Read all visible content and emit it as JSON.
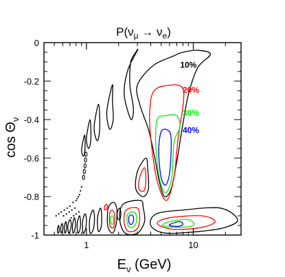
{
  "chart_data": {
    "type": "contour",
    "title": "P(νμ → νe)",
    "title_parts": {
      "prefix": "P(ν",
      "sub1": "μ",
      "arrow": " → ν",
      "sub2": "e",
      "suffix": ")"
    },
    "xlabel": {
      "main": "E",
      "sub": "ν",
      "unit": " (GeV)"
    },
    "ylabel": {
      "main": "cos Θ",
      "sub": "ν"
    },
    "x_scale": "log",
    "xlim": [
      0.4,
      28
    ],
    "ylim": [
      -1,
      0
    ],
    "x_ticks": [
      {
        "value": 1,
        "label": "1"
      },
      {
        "value": 10,
        "label": "10"
      }
    ],
    "y_ticks": [
      {
        "value": 0,
        "label": "0"
      },
      {
        "value": -0.2,
        "label": "-0.2"
      },
      {
        "value": -0.4,
        "label": "-0.4"
      },
      {
        "value": -0.6,
        "label": "-0.6"
      },
      {
        "value": -0.8,
        "label": "-0.8"
      },
      {
        "value": -1,
        "label": "-1"
      }
    ],
    "grid": false,
    "contours": [
      {
        "level": "10%",
        "color": "#000000",
        "label_pos": {
          "E": 9.0,
          "cos": -0.13
        }
      },
      {
        "level": "20%",
        "color": "#ff0000",
        "label_pos": {
          "E": 9.5,
          "cos": -0.26
        }
      },
      {
        "level": "30%",
        "color": "#00ee00",
        "label_pos": {
          "E": 9.5,
          "cos": -0.38
        }
      },
      {
        "level": "40%",
        "color": "#0000ff",
        "label_pos": {
          "E": 9.5,
          "cos": -0.47
        }
      }
    ],
    "main_lobes": [
      {
        "level": "10%",
        "points": [
          [
            6.5,
            -0.07
          ],
          [
            4.2,
            -0.12
          ],
          [
            3.0,
            -0.22
          ],
          [
            3.15,
            -0.32
          ],
          [
            3.8,
            -0.45
          ],
          [
            4.3,
            -0.58
          ],
          [
            4.8,
            -0.72
          ],
          [
            5.4,
            -0.8
          ],
          [
            6.2,
            -0.76
          ],
          [
            7.0,
            -0.62
          ],
          [
            7.9,
            -0.44
          ],
          [
            9.0,
            -0.27
          ],
          [
            11.0,
            -0.13
          ],
          [
            14.5,
            -0.06
          ],
          [
            11.0,
            -0.04
          ],
          [
            8.0,
            -0.05
          ]
        ]
      },
      {
        "level": "20%",
        "points": [
          [
            6.5,
            -0.22
          ],
          [
            4.3,
            -0.25
          ],
          [
            3.9,
            -0.38
          ],
          [
            4.1,
            -0.55
          ],
          [
            4.6,
            -0.72
          ],
          [
            5.6,
            -0.82
          ],
          [
            6.6,
            -0.7
          ],
          [
            7.2,
            -0.5
          ],
          [
            8.0,
            -0.33
          ],
          [
            8.0,
            -0.24
          ]
        ]
      },
      {
        "level": "30%",
        "points": [
          [
            5.4,
            -0.38
          ],
          [
            4.6,
            -0.4
          ],
          [
            4.45,
            -0.52
          ],
          [
            4.8,
            -0.7
          ],
          [
            5.5,
            -0.78
          ],
          [
            6.3,
            -0.7
          ],
          [
            6.6,
            -0.52
          ],
          [
            7.5,
            -0.44
          ],
          [
            7.0,
            -0.38
          ]
        ]
      },
      {
        "level": "40%",
        "points": [
          [
            5.3,
            -0.45
          ],
          [
            4.9,
            -0.48
          ],
          [
            4.75,
            -0.58
          ],
          [
            5.0,
            -0.7
          ],
          [
            5.5,
            -0.74
          ],
          [
            6.0,
            -0.68
          ],
          [
            6.2,
            -0.55
          ],
          [
            6.1,
            -0.47
          ]
        ]
      }
    ],
    "side_bands": [
      {
        "level": "10%",
        "points": [
          [
            3.0,
            -0.04
          ],
          [
            2.45,
            -0.14
          ],
          [
            2.25,
            -0.26
          ],
          [
            2.45,
            -0.36
          ],
          [
            2.65,
            -0.4
          ],
          [
            2.75,
            -0.34
          ],
          [
            2.55,
            -0.22
          ],
          [
            2.6,
            -0.1
          ],
          [
            2.9,
            -0.05
          ]
        ]
      },
      {
        "level": "10%",
        "points": [
          [
            1.75,
            -0.22
          ],
          [
            1.55,
            -0.36
          ],
          [
            1.65,
            -0.45
          ],
          [
            1.78,
            -0.4
          ],
          [
            1.75,
            -0.3
          ]
        ]
      },
      {
        "level": "10%",
        "points": [
          [
            1.3,
            -0.32
          ],
          [
            1.18,
            -0.44
          ],
          [
            1.26,
            -0.51
          ],
          [
            1.33,
            -0.45
          ]
        ]
      },
      {
        "level": "10%",
        "points": [
          [
            1.08,
            -0.4
          ],
          [
            1.0,
            -0.5
          ],
          [
            1.05,
            -0.55
          ],
          [
            1.1,
            -0.5
          ]
        ]
      },
      {
        "level": "10%",
        "points": [
          [
            0.96,
            -0.48
          ],
          [
            0.9,
            -0.56
          ],
          [
            0.94,
            -0.59
          ],
          [
            0.97,
            -0.55
          ]
        ]
      },
      {
        "level": "10%",
        "points": [
          [
            3.6,
            -0.6
          ],
          [
            3.0,
            -0.67
          ],
          [
            2.9,
            -0.76
          ],
          [
            3.4,
            -0.8
          ],
          [
            3.8,
            -0.76
          ],
          [
            3.75,
            -0.66
          ]
        ]
      },
      {
        "level": "20%",
        "points": [
          [
            3.5,
            -0.65
          ],
          [
            3.15,
            -0.7
          ],
          [
            3.1,
            -0.76
          ],
          [
            3.45,
            -0.77
          ],
          [
            3.6,
            -0.72
          ]
        ]
      },
      {
        "level": "10%",
        "points": [
          [
            18.0,
            -0.86
          ],
          [
            8.0,
            -0.87
          ],
          [
            4.5,
            -0.89
          ],
          [
            4.0,
            -0.95
          ],
          [
            5.5,
            -0.99
          ],
          [
            12.0,
            -0.98
          ],
          [
            20.0,
            -0.96
          ],
          [
            26.0,
            -0.92
          ]
        ]
      },
      {
        "level": "20%",
        "points": [
          [
            12.0,
            -0.9
          ],
          [
            6.0,
            -0.91
          ],
          [
            4.6,
            -0.94
          ],
          [
            6.5,
            -0.97
          ],
          [
            12.0,
            -0.96
          ],
          [
            16.0,
            -0.93
          ]
        ]
      },
      {
        "level": "30%",
        "points": [
          [
            9.0,
            -0.92
          ],
          [
            6.0,
            -0.93
          ],
          [
            5.2,
            -0.95
          ],
          [
            7.0,
            -0.96
          ],
          [
            10.0,
            -0.95
          ]
        ]
      },
      {
        "level": "40%",
        "points": [
          [
            7.5,
            -0.93
          ],
          [
            6.3,
            -0.94
          ],
          [
            6.0,
            -0.95
          ],
          [
            7.2,
            -0.955
          ],
          [
            8.0,
            -0.945
          ]
        ]
      },
      {
        "level": "10%",
        "points": [
          [
            3.2,
            -0.82
          ],
          [
            2.2,
            -0.84
          ],
          [
            2.05,
            -0.92
          ],
          [
            2.3,
            -0.99
          ],
          [
            3.0,
            -0.99
          ],
          [
            3.5,
            -0.93
          ],
          [
            3.4,
            -0.86
          ]
        ]
      },
      {
        "level": "20%",
        "points": [
          [
            3.0,
            -0.86
          ],
          [
            2.35,
            -0.87
          ],
          [
            2.25,
            -0.93
          ],
          [
            2.45,
            -0.98
          ],
          [
            2.95,
            -0.97
          ],
          [
            3.15,
            -0.92
          ]
        ]
      },
      {
        "level": "30%",
        "points": [
          [
            2.8,
            -0.88
          ],
          [
            2.45,
            -0.89
          ],
          [
            2.4,
            -0.93
          ],
          [
            2.55,
            -0.96
          ],
          [
            2.85,
            -0.95
          ],
          [
            2.95,
            -0.91
          ]
        ]
      },
      {
        "level": "40%",
        "points": [
          [
            2.62,
            -0.895
          ],
          [
            2.5,
            -0.905
          ],
          [
            2.5,
            -0.935
          ],
          [
            2.62,
            -0.945
          ],
          [
            2.75,
            -0.93
          ],
          [
            2.75,
            -0.905
          ]
        ]
      },
      {
        "level": "10%",
        "points": [
          [
            1.78,
            -0.83
          ],
          [
            1.6,
            -0.86
          ],
          [
            1.58,
            -0.95
          ],
          [
            1.75,
            -0.99
          ],
          [
            1.9,
            -0.94
          ],
          [
            1.92,
            -0.86
          ]
        ]
      },
      {
        "level": "20%",
        "points": [
          [
            1.75,
            -0.87
          ],
          [
            1.65,
            -0.89
          ],
          [
            1.66,
            -0.95
          ],
          [
            1.8,
            -0.96
          ],
          [
            1.84,
            -0.9
          ]
        ]
      },
      {
        "level": "30%",
        "points": [
          [
            1.74,
            -0.9
          ],
          [
            1.69,
            -0.91
          ],
          [
            1.7,
            -0.94
          ],
          [
            1.78,
            -0.94
          ],
          [
            1.79,
            -0.91
          ]
        ]
      },
      {
        "level": "10%",
        "points": [
          [
            2.05,
            -0.86
          ],
          [
            1.95,
            -0.88
          ],
          [
            1.95,
            -0.91
          ],
          [
            2.05,
            -0.92
          ],
          [
            2.1,
            -0.89
          ]
        ]
      },
      {
        "level": "20%",
        "points": [
          [
            1.55,
            -0.84
          ],
          [
            1.48,
            -0.85
          ],
          [
            1.49,
            -0.87
          ],
          [
            1.56,
            -0.86
          ]
        ]
      }
    ],
    "floor_bands": [
      {
        "level": "10%",
        "points": [
          [
            1.15,
            -0.87
          ],
          [
            1.07,
            -0.92
          ],
          [
            1.08,
            -0.99
          ],
          [
            1.16,
            -0.97
          ],
          [
            1.19,
            -0.91
          ]
        ]
      },
      {
        "level": "10%",
        "points": [
          [
            1.35,
            -0.86
          ],
          [
            1.27,
            -0.91
          ],
          [
            1.29,
            -0.98
          ],
          [
            1.37,
            -0.96
          ],
          [
            1.39,
            -0.9
          ]
        ]
      },
      {
        "level": "10%",
        "points": [
          [
            0.97,
            -0.89
          ],
          [
            0.92,
            -0.93
          ],
          [
            0.93,
            -0.99
          ],
          [
            0.98,
            -0.97
          ],
          [
            1.0,
            -0.92
          ]
        ]
      },
      {
        "level": "10%",
        "points": [
          [
            0.86,
            -0.9
          ],
          [
            0.82,
            -0.94
          ],
          [
            0.83,
            -0.99
          ],
          [
            0.87,
            -0.97
          ],
          [
            0.88,
            -0.93
          ]
        ]
      },
      {
        "level": "10%",
        "points": [
          [
            0.77,
            -0.91
          ],
          [
            0.74,
            -0.95
          ],
          [
            0.75,
            -0.99
          ],
          [
            0.78,
            -0.97
          ],
          [
            0.79,
            -0.94
          ]
        ]
      },
      {
        "level": "10%",
        "points": [
          [
            0.7,
            -0.92
          ],
          [
            0.67,
            -0.95
          ],
          [
            0.68,
            -0.99
          ],
          [
            0.71,
            -0.97
          ],
          [
            0.72,
            -0.94
          ]
        ]
      },
      {
        "level": "10%",
        "points": [
          [
            0.64,
            -0.93
          ],
          [
            0.62,
            -0.96
          ],
          [
            0.63,
            -0.99
          ],
          [
            0.65,
            -0.97
          ],
          [
            0.65,
            -0.95
          ]
        ]
      },
      {
        "level": "10%",
        "points": [
          [
            0.59,
            -0.94
          ],
          [
            0.575,
            -0.96
          ],
          [
            0.58,
            -0.99
          ],
          [
            0.6,
            -0.97
          ],
          [
            0.6,
            -0.95
          ]
        ]
      },
      {
        "level": "10%",
        "points": [
          [
            0.55,
            -0.95
          ],
          [
            0.535,
            -0.97
          ],
          [
            0.54,
            -0.99
          ],
          [
            0.555,
            -0.98
          ]
        ]
      }
    ],
    "dots": [
      [
        0.8,
        -0.82
      ],
      [
        0.75,
        -0.83
      ],
      [
        0.7,
        -0.85
      ],
      [
        0.66,
        -0.86
      ],
      [
        0.62,
        -0.87
      ],
      [
        0.58,
        -0.88
      ],
      [
        0.55,
        -0.89
      ],
      [
        0.52,
        -0.9
      ],
      [
        0.9,
        -0.75
      ],
      [
        0.88,
        -0.77
      ],
      [
        0.86,
        -0.79
      ],
      [
        0.84,
        -0.8
      ],
      [
        0.82,
        -0.81
      ],
      [
        0.78,
        -0.86
      ],
      [
        0.73,
        -0.87
      ],
      [
        0.69,
        -0.88
      ],
      [
        0.65,
        -0.89
      ],
      [
        0.61,
        -0.9
      ],
      [
        0.85,
        -0.88
      ],
      [
        0.8,
        -0.89
      ],
      [
        0.76,
        -0.9
      ],
      [
        0.72,
        -0.91
      ]
    ],
    "tiny_ellipses": [
      [
        0.99,
        -0.58
      ],
      [
        0.98,
        -0.61
      ],
      [
        0.97,
        -0.64
      ],
      [
        0.955,
        -0.67
      ],
      [
        0.94,
        -0.7
      ]
    ]
  }
}
